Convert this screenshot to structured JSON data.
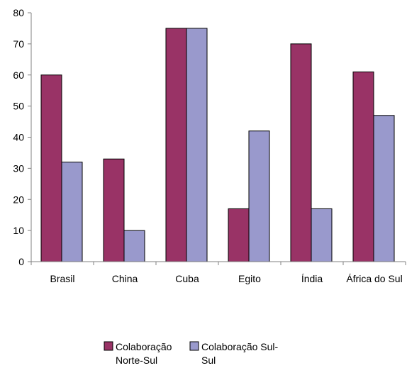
{
  "chart_data": {
    "type": "bar",
    "title": "",
    "xlabel": "",
    "ylabel": "",
    "categories": [
      "Brasil",
      "China",
      "Cuba",
      "Egito",
      "Índia",
      "África do Sul"
    ],
    "series": [
      {
        "name": "Colaboração Norte-Sul",
        "name_lines": [
          "Colaboração",
          "Norte-Sul"
        ],
        "color": "#993366",
        "values": [
          60,
          33,
          75,
          17,
          70,
          61
        ]
      },
      {
        "name": "Colaboração Sul-Sul",
        "name_lines": [
          "Colaboração Sul-",
          "Sul"
        ],
        "color": "#9999CC",
        "values": [
          32,
          10,
          75,
          42,
          17,
          47
        ]
      }
    ],
    "ylim": [
      0,
      80
    ],
    "yticks": [
      0,
      10,
      20,
      30,
      40,
      50,
      60,
      70,
      80
    ],
    "grid": false,
    "legend_position": "bottom"
  }
}
